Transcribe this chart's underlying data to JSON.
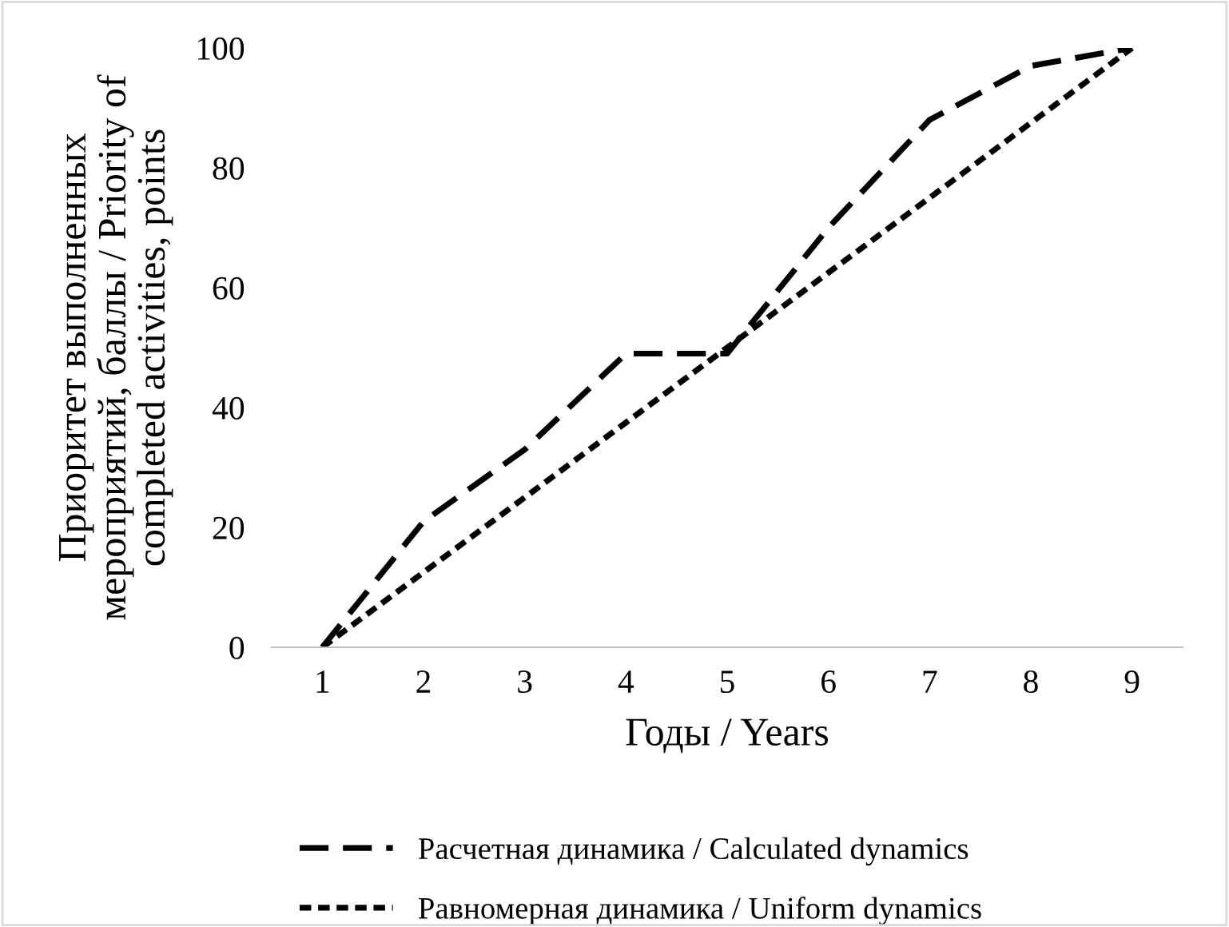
{
  "chart_data": {
    "type": "line",
    "xlabel": "Годы / Years",
    "ylabel": "Приоритет выполненных\nмероприятий, баллы / Priority of\ncompleted activities, points",
    "categories": [
      "1",
      "2",
      "3",
      "4",
      "5",
      "6",
      "7",
      "8",
      "9"
    ],
    "series": [
      {
        "name": "Расчетная динамика / Calculated dynamics",
        "color": "#000000",
        "line_style": "dashed",
        "values": [
          0,
          21,
          33,
          49,
          49,
          70,
          88,
          97,
          100
        ]
      },
      {
        "name": "Равномерная динамика / Uniform dynamics",
        "color": "#000000",
        "line_style": "dotted",
        "values": [
          0,
          12.5,
          25,
          37.5,
          50,
          62.5,
          75,
          87.5,
          100
        ]
      }
    ],
    "ylim": [
      0,
      100
    ],
    "yticks": [
      0,
      20,
      40,
      60,
      80,
      100
    ],
    "grid": false,
    "legend": "bottom",
    "marker": "none"
  }
}
